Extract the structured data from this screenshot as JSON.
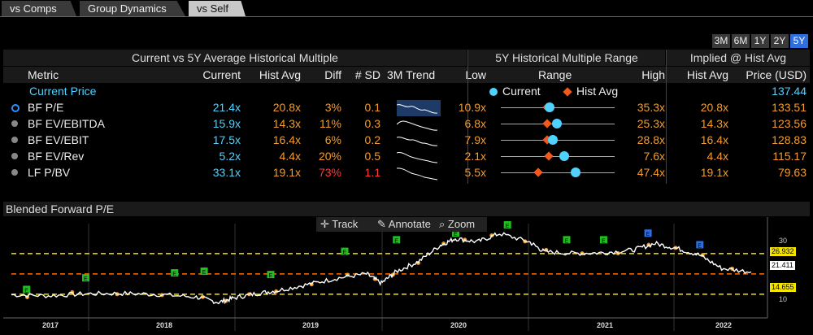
{
  "tabs": [
    "vs Comps",
    "Group Dynamics",
    "vs Self"
  ],
  "range_buttons": [
    "3M",
    "6M",
    "1Y",
    "2Y",
    "5Y"
  ],
  "table": {
    "section1_title": "Current vs 5Y Average Historical Multiple",
    "section2_title": "5Y Historical Multiple Range",
    "section3_title": "Implied @ Hist Avg",
    "headers": {
      "metric": "Metric",
      "current": "Current",
      "hist_avg": "Hist Avg",
      "diff": "Diff",
      "sd": "# SD",
      "trend": "3M Trend",
      "low": "Low",
      "range": "Range",
      "high": "High",
      "impl_hist_avg": "Hist Avg",
      "price_usd": "Price (USD)"
    },
    "current_price": {
      "label": "Current Price",
      "value": "137.44"
    },
    "legend": {
      "current": "Current",
      "hist_avg": "Hist Avg"
    },
    "rows": [
      {
        "metric": "BF P/E",
        "current": "21.4x",
        "hist_avg": "20.8x",
        "diff": "3%",
        "sd": "0.1",
        "low": "10.9x",
        "high": "35.3x",
        "impl_avg": "20.8x",
        "price": "133.51",
        "cur_pos": 0.43,
        "avg_pos": 0.41
      },
      {
        "metric": "BF EV/EBITDA",
        "current": "15.9x",
        "hist_avg": "14.3x",
        "diff": "11%",
        "sd": "0.3",
        "low": "6.8x",
        "high": "25.3x",
        "impl_avg": "14.3x",
        "price": "123.56",
        "cur_pos": 0.49,
        "avg_pos": 0.41
      },
      {
        "metric": "BF EV/EBIT",
        "current": "17.5x",
        "hist_avg": "16.4x",
        "diff": "6%",
        "sd": "0.2",
        "low": "7.9x",
        "high": "28.8x",
        "impl_avg": "16.4x",
        "price": "128.83",
        "cur_pos": 0.46,
        "avg_pos": 0.41
      },
      {
        "metric": "BF EV/Rev",
        "current": "5.2x",
        "hist_avg": "4.4x",
        "diff": "20%",
        "sd": "0.5",
        "low": "2.1x",
        "high": "7.6x",
        "impl_avg": "4.4x",
        "price": "115.17",
        "cur_pos": 0.56,
        "avg_pos": 0.42
      },
      {
        "metric": "LF P/BV",
        "current": "33.1x",
        "hist_avg": "19.1x",
        "diff": "73%",
        "sd": "1.1",
        "low": "5.5x",
        "high": "47.4x",
        "impl_avg": "19.1x",
        "price": "79.63",
        "cur_pos": 0.66,
        "avg_pos": 0.33
      }
    ]
  },
  "chart": {
    "title": "Blended Forward P/E",
    "toolbar": {
      "track": "Track",
      "annotate": "Annotate",
      "zoom": "Zoom"
    },
    "x_labels": [
      "2017",
      "2018",
      "2019",
      "2020",
      "2021",
      "2022"
    ],
    "y_ticks": [
      "30",
      "20",
      "10"
    ],
    "level_labels": {
      "upper": "26.932",
      "current": "21.411",
      "lower": "14.655"
    },
    "colors": {
      "line": "#ffffff",
      "upper": "#f5e400",
      "mean": "#ff6a00",
      "lower": "#f5e400",
      "event": "#20c020",
      "event_alt": "#2f6fdd"
    }
  },
  "chart_data": {
    "type": "line",
    "title": "Blended Forward P/E",
    "x_labels": [
      "2017",
      "2018",
      "2019",
      "2020",
      "2021",
      "2022"
    ],
    "y_ticks": [
      10,
      20,
      30
    ],
    "ylim": [
      8,
      36
    ],
    "reference_lines": {
      "plus_1sd": 26.932,
      "mean": 20.8,
      "minus_1sd": 14.655,
      "current": 21.411
    },
    "series": [
      {
        "name": "BF P/E",
        "x": [
          0,
          0.05,
          0.1,
          0.15,
          0.2,
          0.25,
          0.28,
          0.3,
          0.33,
          0.36,
          0.4,
          0.44,
          0.48,
          0.5,
          0.52,
          0.55,
          0.58,
          0.6,
          0.63,
          0.66,
          0.7,
          0.72,
          0.76,
          0.8,
          0.84,
          0.87,
          0.9,
          0.93,
          0.96,
          1.0
        ],
        "y": [
          14.5,
          14.2,
          14.8,
          14.9,
          14.6,
          13.8,
          12.2,
          13.5,
          14.8,
          15.8,
          17.6,
          19.5,
          20.8,
          18.0,
          21.5,
          24.5,
          29.5,
          31.5,
          30.5,
          33.0,
          30.5,
          27.5,
          27.0,
          27.2,
          28.0,
          30.0,
          28.5,
          26.5,
          22.5,
          21.4
        ]
      }
    ]
  }
}
